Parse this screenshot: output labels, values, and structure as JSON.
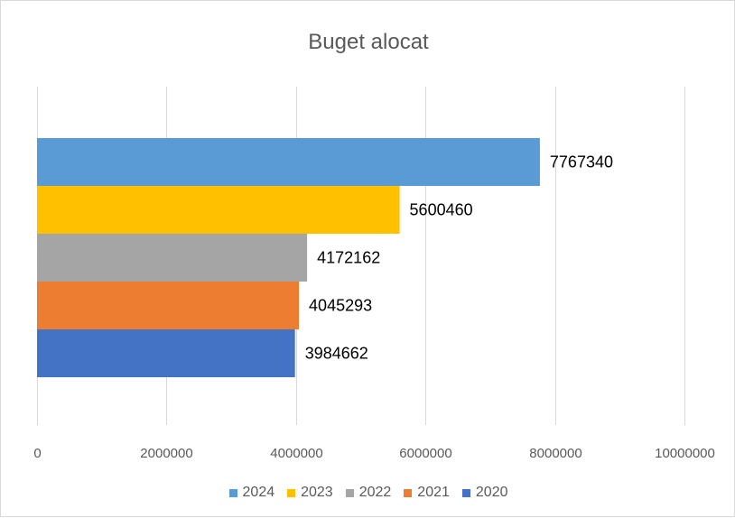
{
  "chart_data": {
    "type": "bar",
    "orientation": "horizontal",
    "title": "Buget alocat",
    "xlabel": "",
    "ylabel": "",
    "xlim": [
      0,
      10000000
    ],
    "x_ticks": [
      "0",
      "2000000",
      "4000000",
      "6000000",
      "8000000",
      "10000000"
    ],
    "grid": "vertical",
    "legend_position": "bottom",
    "series": [
      {
        "name": "2024",
        "value": 7767340,
        "color": "#5b9bd5"
      },
      {
        "name": "2023",
        "value": 5600460,
        "color": "#ffc000"
      },
      {
        "name": "2022",
        "value": 4172162,
        "color": "#a5a5a5"
      },
      {
        "name": "2021",
        "value": 4045293,
        "color": "#ed7d31"
      },
      {
        "name": "2020",
        "value": 3984662,
        "color": "#4472c4"
      }
    ],
    "data_labels": [
      "7767340",
      "5600460",
      "4172162",
      "4045293",
      "3984662"
    ]
  }
}
